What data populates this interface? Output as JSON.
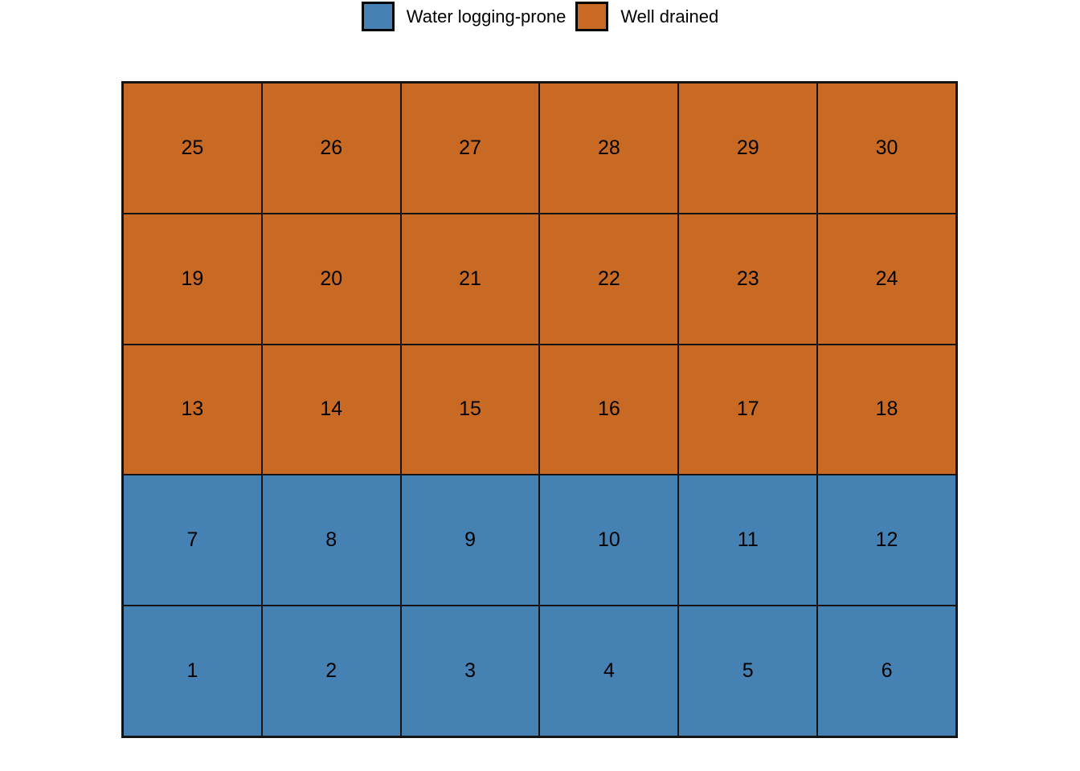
{
  "figure": {
    "background": "#FFFFFF",
    "grid_line_color": "#141414"
  },
  "legend": {
    "items": [
      {
        "key": "water_logging_prone",
        "label": "Water logging-prone",
        "color": "#4681B4"
      },
      {
        "key": "well_drained",
        "label": "Well drained",
        "color": "#C96A24"
      }
    ]
  },
  "chart_data": {
    "type": "heatmap",
    "title": "",
    "grid": {
      "rows": 5,
      "cols": 6
    },
    "legend_position": "top-center",
    "rows_top_to_bottom": [
      {
        "category": "well_drained",
        "plots": [
          25,
          26,
          27,
          28,
          29,
          30
        ]
      },
      {
        "category": "well_drained",
        "plots": [
          19,
          20,
          21,
          22,
          23,
          24
        ]
      },
      {
        "category": "well_drained",
        "plots": [
          13,
          14,
          15,
          16,
          17,
          18
        ]
      },
      {
        "category": "water_logging_prone",
        "plots": [
          7,
          8,
          9,
          10,
          11,
          12
        ]
      },
      {
        "category": "water_logging_prone",
        "plots": [
          1,
          2,
          3,
          4,
          5,
          6
        ]
      }
    ],
    "categories": {
      "water_logging_prone": {
        "label": "Water logging-prone",
        "color": "#4681B4",
        "plots": [
          1,
          2,
          3,
          4,
          5,
          6,
          7,
          8,
          9,
          10,
          11,
          12
        ]
      },
      "well_drained": {
        "label": "Well drained",
        "color": "#C96A24",
        "plots": [
          13,
          14,
          15,
          16,
          17,
          18,
          19,
          20,
          21,
          22,
          23,
          24,
          25,
          26,
          27,
          28,
          29,
          30
        ]
      }
    }
  }
}
